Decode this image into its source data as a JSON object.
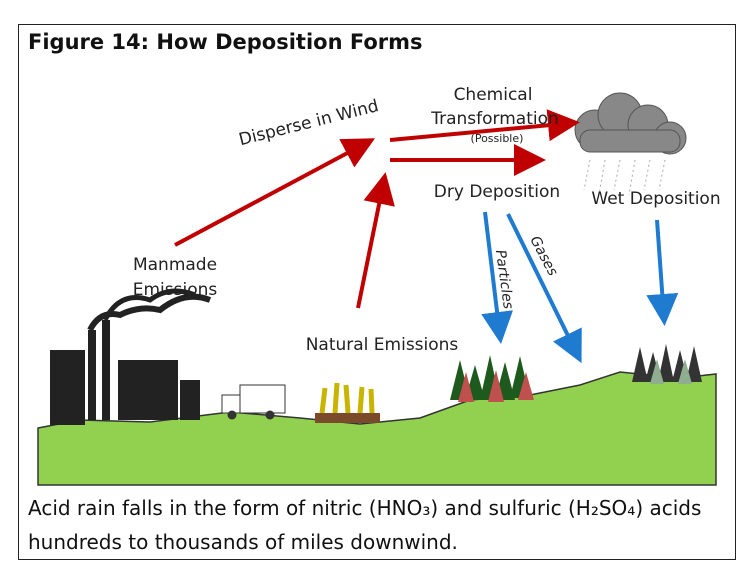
{
  "header": {
    "title": "Figure 14: How Deposition Forms"
  },
  "labels": {
    "disperse": "Disperse in Wind",
    "chemical": "Chemical",
    "transformation": "Transformation",
    "possible": "(Possible)",
    "dry": "Dry Deposition",
    "wet": "Wet Deposition",
    "manmade": "Manmade",
    "emissions": "Emissions",
    "natural": "Natural Emissions",
    "particles": "Particles",
    "gases": "Gases"
  },
  "caption": "Acid rain falls in the form of nitric (HNO₃) and sulfuric (H₂SO₄) acids hundreds to thousands of miles downwind."
}
